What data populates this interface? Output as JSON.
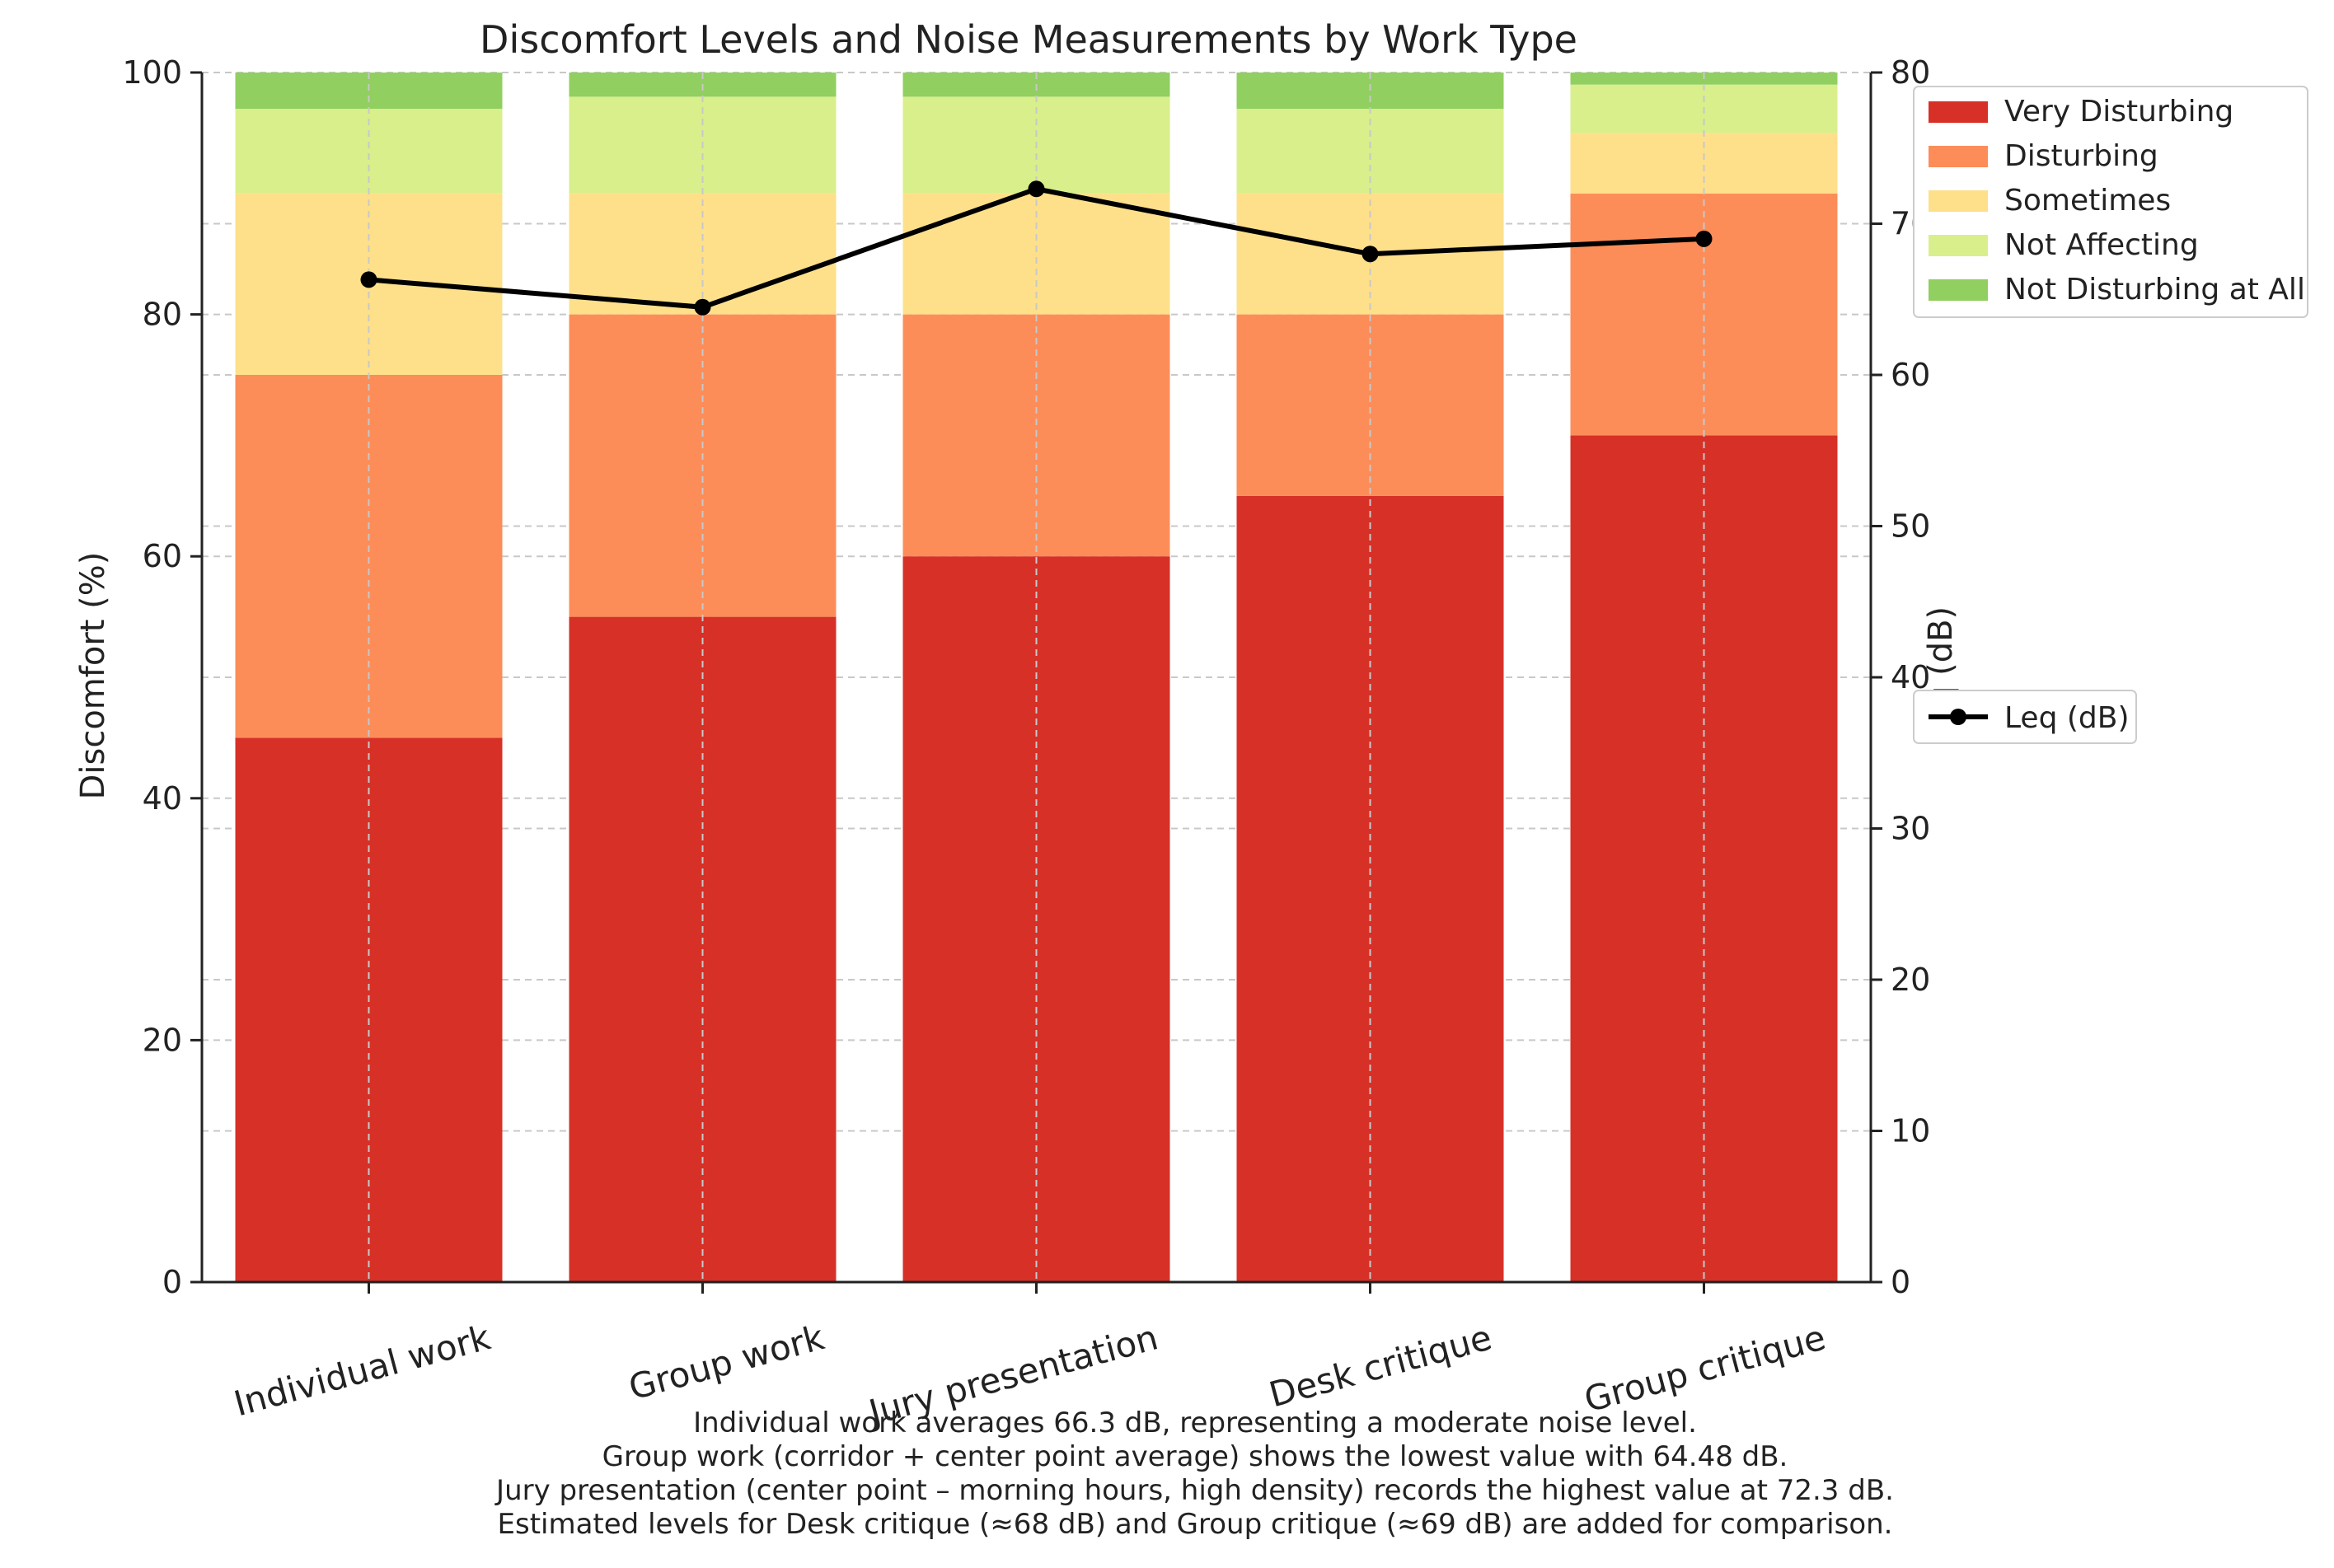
{
  "chart_data": {
    "type": "bar",
    "stacked": true,
    "title": "Discomfort Levels and Noise Measurements by Work Type",
    "xlabel": "",
    "ylabel": "Discomfort (%)",
    "ylabel_right": "Leq (dB)",
    "ylim": [
      0,
      100
    ],
    "ylim_right": [
      0,
      80
    ],
    "yticks": [
      0,
      20,
      40,
      60,
      80,
      100
    ],
    "yticks_right": [
      0,
      10,
      20,
      30,
      40,
      50,
      60,
      70,
      80
    ],
    "grid": true,
    "categories": [
      "Individual work",
      "Group work",
      "Jury presentation",
      "Desk critique",
      "Group critique"
    ],
    "series": [
      {
        "name": "Very Disturbing",
        "color": "#d73027",
        "values": [
          45,
          55,
          60,
          65,
          70
        ]
      },
      {
        "name": "Disturbing",
        "color": "#fc8d59",
        "values": [
          30,
          25,
          20,
          15,
          20
        ]
      },
      {
        "name": "Sometimes",
        "color": "#fee08b",
        "values": [
          15,
          10,
          10,
          10,
          5
        ]
      },
      {
        "name": "Not Affecting",
        "color": "#d9ef8b",
        "values": [
          7,
          8,
          8,
          7,
          4
        ]
      },
      {
        "name": "Not Disturbing at All",
        "color": "#91cf60",
        "values": [
          3,
          2,
          2,
          3,
          1
        ]
      }
    ],
    "line_series": {
      "name": "Leq (dB)",
      "color": "#000000",
      "axis": "right",
      "values": [
        66.3,
        64.48,
        72.3,
        68,
        69
      ]
    },
    "legend_main_position": "upper-right",
    "legend_line_position": "center-right",
    "annotations": [
      "Individual work averages 66.3 dB, representing a moderate noise level.",
      "Group work (corridor + center point average) shows the lowest value with 64.48 dB.",
      "Jury presentation (center point – morning hours, high density) records the highest value at 72.3 dB.",
      "Estimated levels for Desk critique (≈68 dB) and Group critique (≈69 dB) are added for comparison."
    ]
  }
}
